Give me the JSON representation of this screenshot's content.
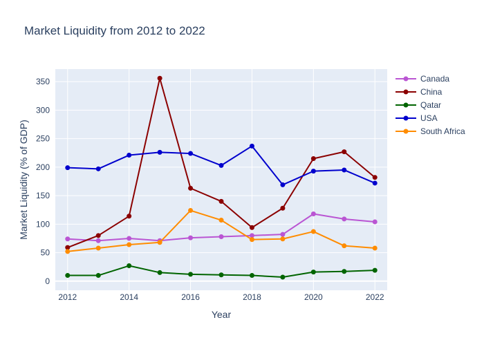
{
  "chart_data": {
    "type": "line",
    "title": "Market Liquidity from 2012 to 2022",
    "xlabel": "Year",
    "ylabel": "Market Liquidity (% of GDP)",
    "x": [
      2012,
      2013,
      2014,
      2015,
      2016,
      2017,
      2018,
      2019,
      2020,
      2021,
      2022
    ],
    "xlim": [
      2011.6,
      2022.4
    ],
    "ylim": [
      -16,
      372
    ],
    "x_ticks": [
      2012,
      2014,
      2016,
      2018,
      2020,
      2022
    ],
    "y_ticks": [
      0,
      50,
      100,
      150,
      200,
      250,
      300,
      350
    ],
    "grid": true,
    "legend_position": "top-right",
    "series": [
      {
        "name": "Canada",
        "color": "#ba55d3",
        "values": [
          74,
          71,
          75,
          71,
          76,
          78,
          80,
          82,
          118,
          109,
          104
        ]
      },
      {
        "name": "China",
        "color": "#8b0000",
        "values": [
          59,
          80,
          114,
          356,
          163,
          140,
          94,
          128,
          215,
          227,
          182
        ]
      },
      {
        "name": "Qatar",
        "color": "#006400",
        "values": [
          10,
          10,
          27,
          15,
          12,
          11,
          10,
          7,
          16,
          17,
          19
        ]
      },
      {
        "name": "USA",
        "color": "#0000cd",
        "values": [
          199,
          197,
          221,
          226,
          224,
          203,
          237,
          169,
          193,
          195,
          172
        ]
      },
      {
        "name": "South Africa",
        "color": "#ff8c00",
        "values": [
          52,
          58,
          64,
          68,
          124,
          107,
          73,
          74,
          87,
          62,
          58
        ]
      }
    ]
  }
}
